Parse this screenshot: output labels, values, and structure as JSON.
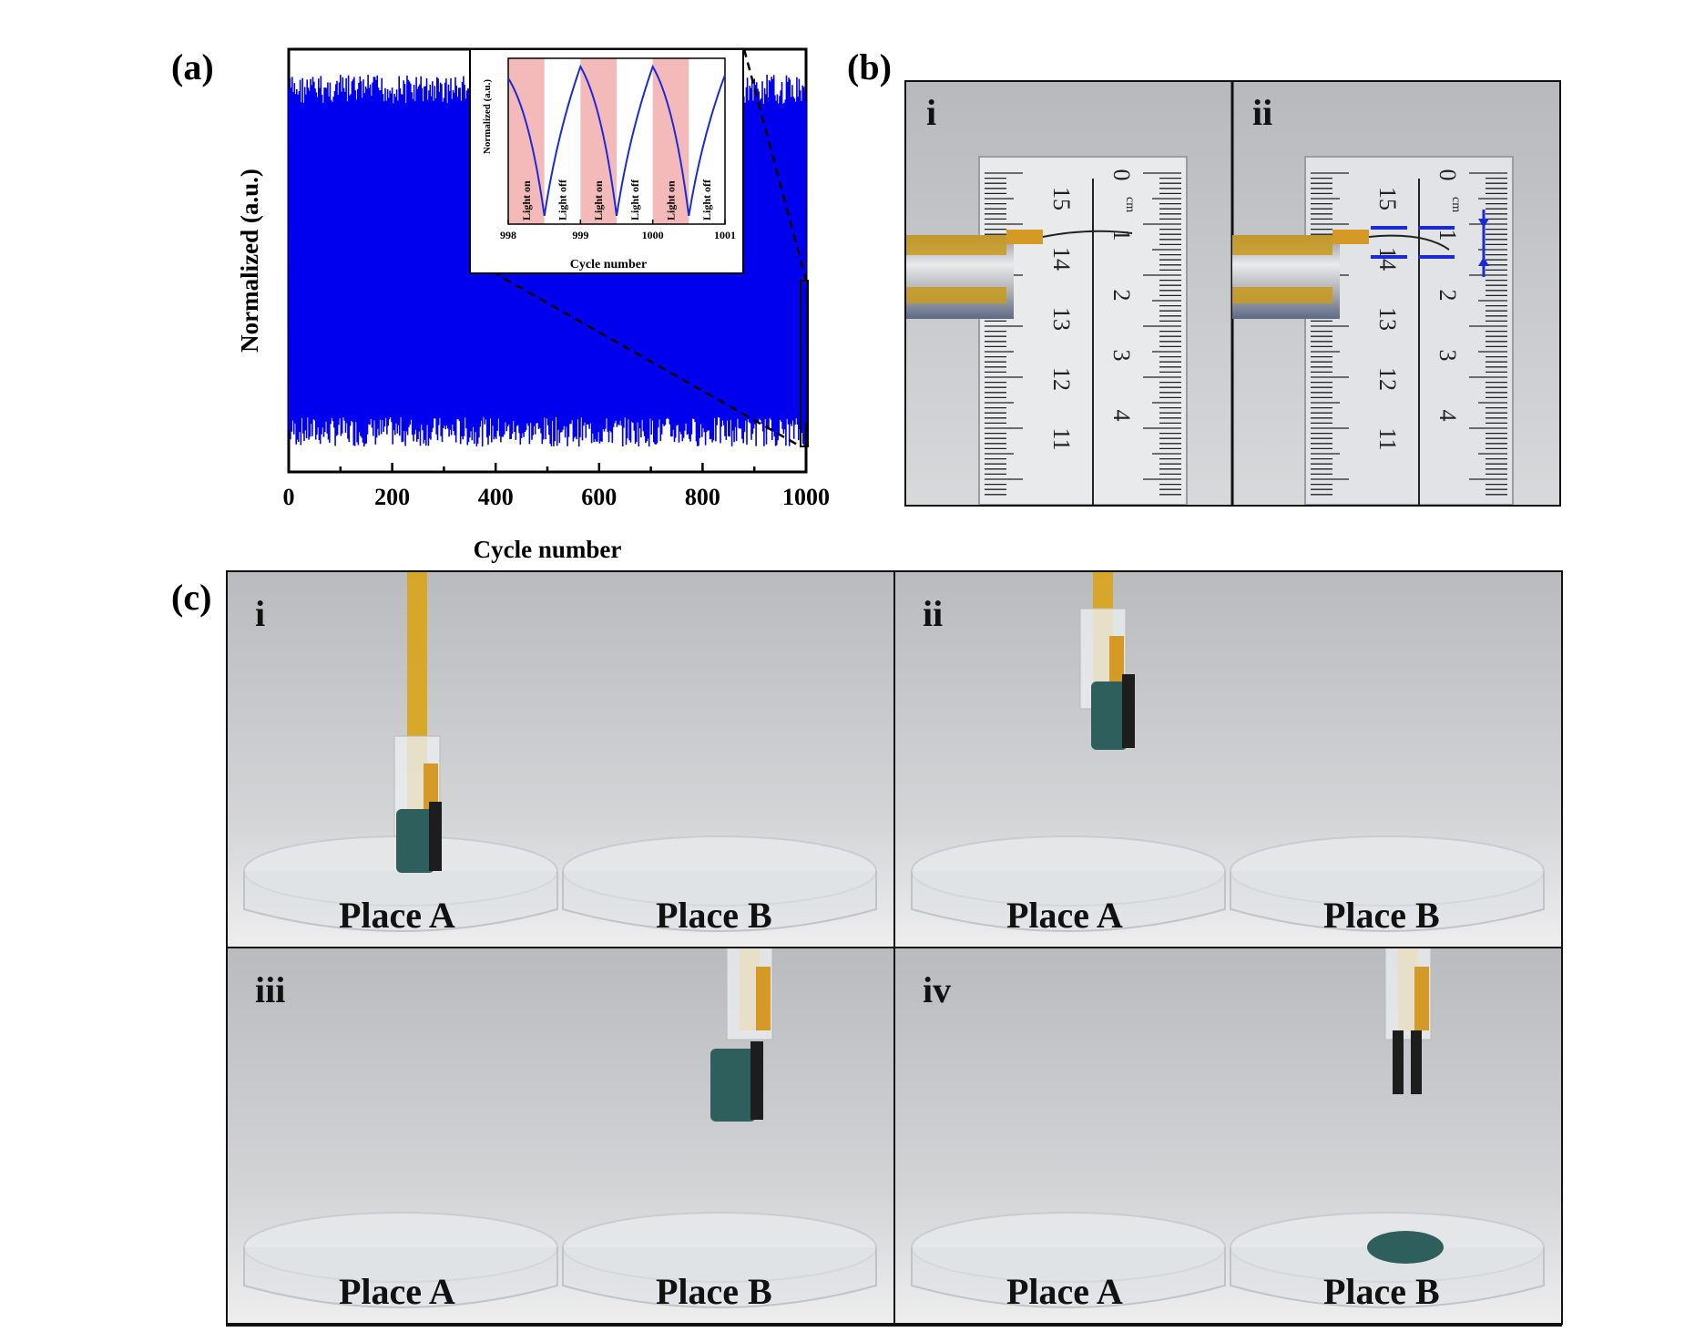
{
  "panels": {
    "a": {
      "label": "(a)"
    },
    "b": {
      "label": "(b)",
      "sub": [
        "i",
        "ii"
      ]
    },
    "c": {
      "label": "(c)",
      "sub": [
        "i",
        "ii",
        "iii",
        "iv"
      ]
    }
  },
  "ruler": {
    "left_scale": [
      "15",
      "14",
      "13",
      "12",
      "11"
    ],
    "right_scale": [
      "0",
      "1",
      "2",
      "3",
      "4"
    ],
    "unit": "cm"
  },
  "photos_c": [
    {
      "numeral": "i",
      "place_a": "Place A",
      "place_b": "Place B"
    },
    {
      "numeral": "ii",
      "place_a": "Place A",
      "place_b": "Place B"
    },
    {
      "numeral": "iii",
      "place_a": "Place A",
      "place_b": "Place B"
    },
    {
      "numeral": "iv",
      "place_a": "Place A",
      "place_b": "Place B"
    }
  ],
  "chart_data": [
    {
      "type": "line",
      "title": "",
      "xlabel": "Cycle number",
      "ylabel": "Normalized (a.u.)",
      "xlim": [
        0,
        1000
      ],
      "ylim": [
        0,
        1
      ],
      "xticks": [
        "0",
        "200",
        "400",
        "600",
        "800",
        "1000"
      ],
      "series": [
        {
          "color": "#0000ee",
          "x_start": 0,
          "x_end": 1000,
          "cycles": 1000,
          "min": 0.06,
          "max": 0.94
        }
      ],
      "zoom_region": [
        995,
        1000
      ]
    },
    {
      "type": "line",
      "title": "",
      "xlabel": "Cycle number",
      "ylabel": "Normalized (a.u.)",
      "xlim": [
        998,
        1001
      ],
      "xticks": [
        "998",
        "999",
        "1000",
        "1001"
      ],
      "shaded_color": "#f4b9b9",
      "light_labels": [
        "Light on",
        "Light off",
        "Light on",
        "Light off",
        "Light on",
        "Light off"
      ],
      "series": [
        {
          "color": "#1a2bd6",
          "x": [
            998.0,
            998.5,
            999.0,
            999.5,
            1000.0,
            1000.5,
            1001.0
          ],
          "y": [
            0.88,
            0.05,
            0.95,
            0.05,
            0.95,
            0.05,
            0.9
          ]
        }
      ]
    }
  ]
}
